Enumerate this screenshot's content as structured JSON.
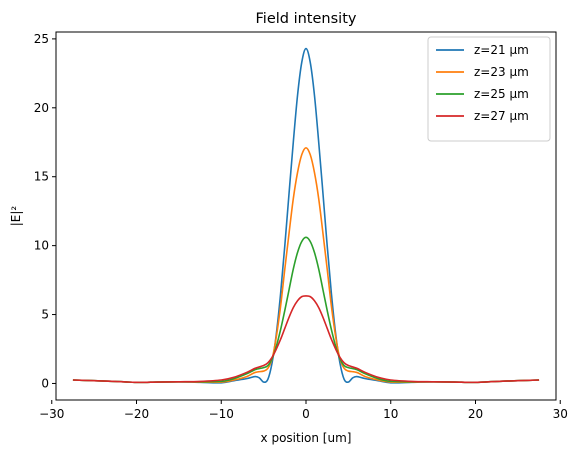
{
  "chart_data": {
    "type": "line",
    "title": "Field intensity",
    "xlabel": "x position [um]",
    "ylabel": "|E|²",
    "xlim": [
      -29.5,
      29.5
    ],
    "ylim": [
      -1.2,
      25.5
    ],
    "xticks": [
      -30,
      -20,
      -10,
      0,
      10,
      20,
      30
    ],
    "yticks": [
      0,
      5,
      10,
      15,
      20,
      25
    ],
    "grid": false,
    "legend_position": "upper-right",
    "series": [
      {
        "name": "z=21 μm",
        "color": "#1f77b4",
        "x": [
          -27.5,
          -25,
          -22.5,
          -20,
          -17.5,
          -15,
          -12.5,
          -10,
          -8.5,
          -7,
          -6,
          -5.5,
          -5,
          -4.5,
          -4,
          -3.5,
          -3,
          -2.5,
          -2,
          -1.5,
          -1,
          -0.5,
          0,
          0.5,
          1,
          1.5,
          2,
          2.5,
          3,
          3.5,
          4,
          4.5,
          5,
          5.5,
          6,
          7,
          8.5,
          10,
          12.5,
          15,
          17.5,
          20,
          22.5,
          25,
          27.5
        ],
        "y": [
          0.25,
          0.2,
          0.15,
          0.08,
          0.1,
          0.12,
          0.08,
          0.05,
          0.2,
          0.35,
          0.5,
          0.4,
          0.1,
          0.3,
          1.5,
          3.6,
          6.5,
          10.0,
          13.8,
          17.5,
          20.9,
          23.3,
          24.3,
          23.3,
          20.9,
          17.5,
          13.8,
          10.0,
          6.5,
          3.6,
          1.5,
          0.3,
          0.1,
          0.4,
          0.5,
          0.35,
          0.2,
          0.05,
          0.08,
          0.12,
          0.1,
          0.08,
          0.15,
          0.2,
          0.25
        ]
      },
      {
        "name": "z=23 μm",
        "color": "#ff7f0e",
        "x": [
          -27.5,
          -25,
          -22.5,
          -20,
          -17.5,
          -15,
          -12.5,
          -10,
          -8.5,
          -7,
          -6,
          -5,
          -4.5,
          -4,
          -3.5,
          -3,
          -2.5,
          -2,
          -1.5,
          -1,
          -0.5,
          0,
          0.5,
          1,
          1.5,
          2,
          2.5,
          3,
          3.5,
          4,
          4.5,
          5,
          6,
          7,
          8.5,
          10,
          12.5,
          15,
          17.5,
          20,
          22.5,
          25,
          27.5
        ],
        "y": [
          0.25,
          0.2,
          0.15,
          0.08,
          0.1,
          0.12,
          0.1,
          0.1,
          0.25,
          0.5,
          0.8,
          0.9,
          1.1,
          1.8,
          3.4,
          5.6,
          8.3,
          10.9,
          13.4,
          15.3,
          16.6,
          17.1,
          16.6,
          15.3,
          13.4,
          10.9,
          8.3,
          5.6,
          3.4,
          1.8,
          1.1,
          0.9,
          0.8,
          0.5,
          0.25,
          0.1,
          0.1,
          0.12,
          0.1,
          0.08,
          0.15,
          0.2,
          0.25
        ]
      },
      {
        "name": "z=25 μm",
        "color": "#2ca02c",
        "x": [
          -27.5,
          -25,
          -22.5,
          -20,
          -17.5,
          -15,
          -12.5,
          -10,
          -8.5,
          -7,
          -6,
          -5,
          -4.5,
          -4,
          -3.5,
          -3,
          -2.5,
          -2,
          -1.5,
          -1,
          -0.5,
          0,
          0.5,
          1,
          1.5,
          2,
          2.5,
          3,
          3.5,
          4,
          4.5,
          5,
          6,
          7,
          8.5,
          10,
          12.5,
          15,
          17.5,
          20,
          22.5,
          25,
          27.5
        ],
        "y": [
          0.25,
          0.2,
          0.15,
          0.08,
          0.1,
          0.12,
          0.12,
          0.15,
          0.35,
          0.7,
          1.0,
          1.15,
          1.3,
          1.8,
          2.7,
          3.9,
          5.3,
          6.8,
          8.3,
          9.5,
          10.3,
          10.6,
          10.3,
          9.5,
          8.3,
          6.8,
          5.3,
          3.9,
          2.7,
          1.8,
          1.3,
          1.15,
          1.0,
          0.7,
          0.35,
          0.15,
          0.12,
          0.12,
          0.1,
          0.08,
          0.15,
          0.2,
          0.25
        ]
      },
      {
        "name": "z=27 μm",
        "color": "#d62728",
        "x": [
          -27.5,
          -25,
          -22.5,
          -20,
          -17.5,
          -15,
          -12.5,
          -10,
          -8.5,
          -7,
          -6,
          -5,
          -4.5,
          -4,
          -3.5,
          -3,
          -2.5,
          -2,
          -1.5,
          -1,
          -0.5,
          0,
          0.5,
          1,
          1.5,
          2,
          2.5,
          3,
          3.5,
          4,
          4.5,
          5,
          6,
          7,
          8.5,
          10,
          12.5,
          15,
          17.5,
          20,
          22.5,
          25,
          27.5
        ],
        "y": [
          0.25,
          0.2,
          0.15,
          0.08,
          0.1,
          0.12,
          0.15,
          0.25,
          0.45,
          0.8,
          1.1,
          1.3,
          1.5,
          1.9,
          2.5,
          3.2,
          4.0,
          4.8,
          5.5,
          6.0,
          6.3,
          6.35,
          6.3,
          6.0,
          5.5,
          4.8,
          4.0,
          3.2,
          2.5,
          1.9,
          1.5,
          1.3,
          1.1,
          0.8,
          0.45,
          0.25,
          0.15,
          0.12,
          0.1,
          0.08,
          0.15,
          0.2,
          0.25
        ]
      }
    ]
  }
}
